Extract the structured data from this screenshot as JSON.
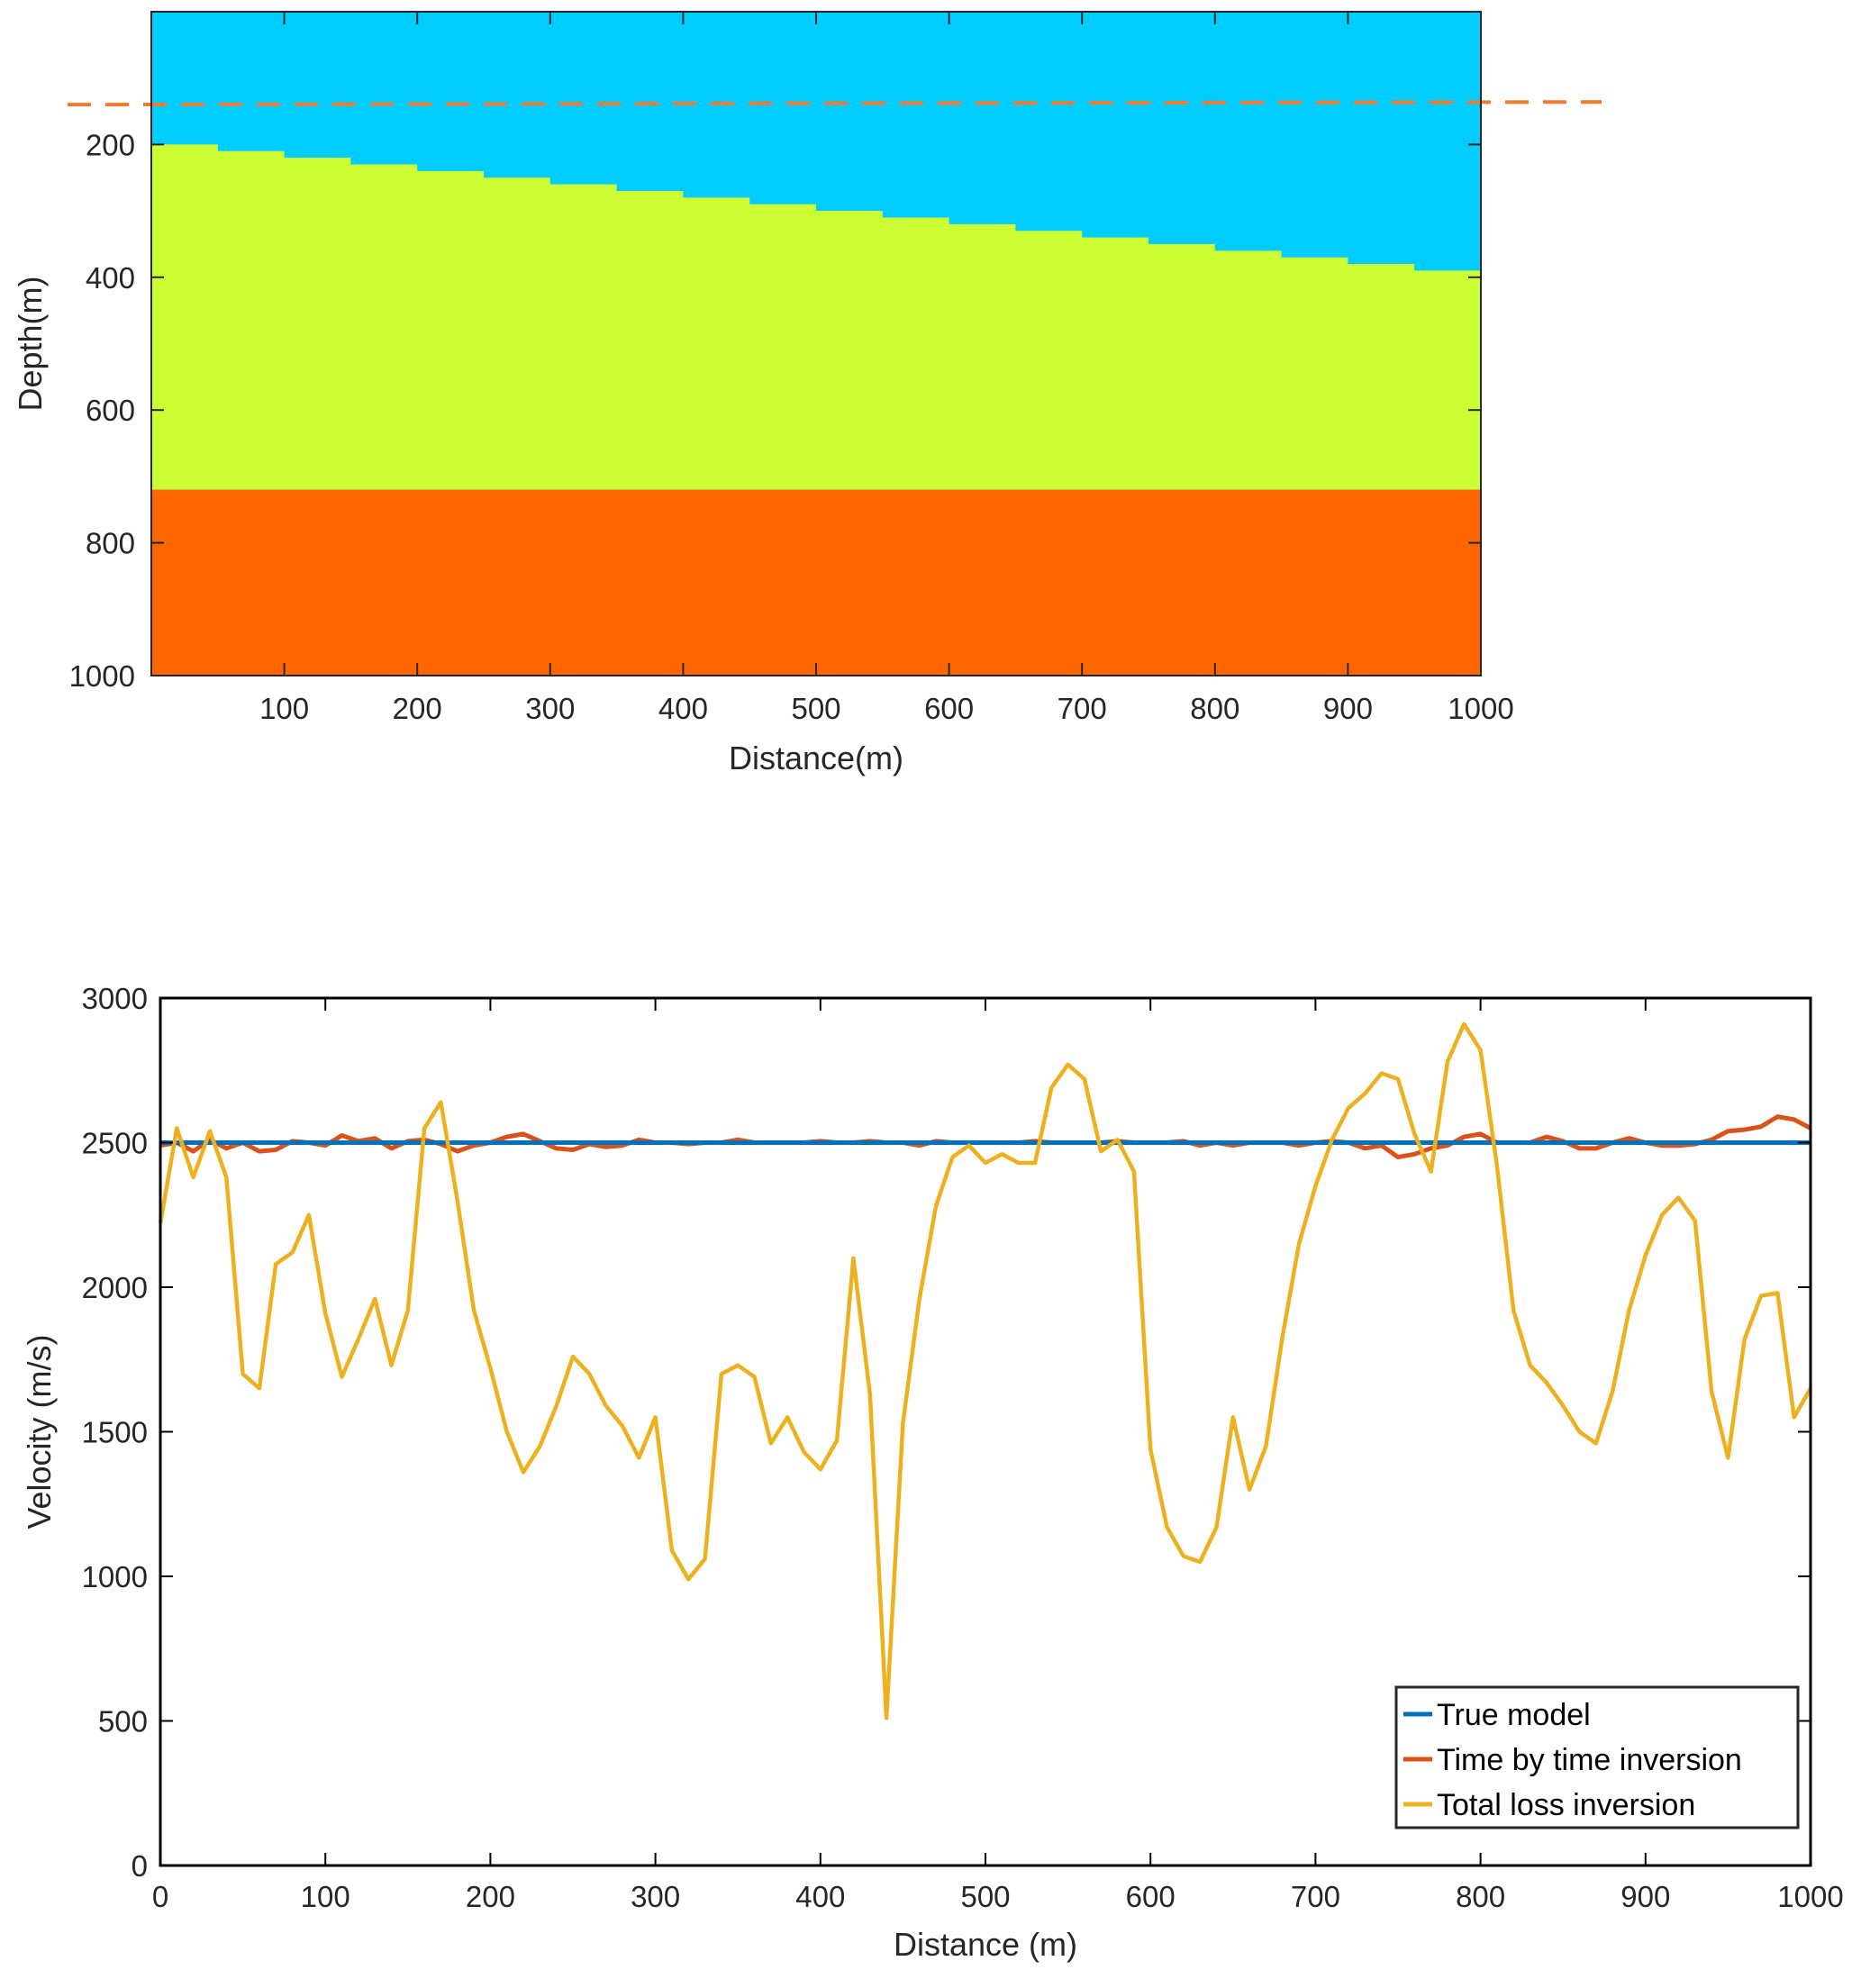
{
  "chart_data": [
    {
      "type": "heatmap",
      "title": "",
      "xlabel": "Distance(m)",
      "ylabel": "Depth(m)",
      "xlim": [
        0,
        1000
      ],
      "ylim": [
        0,
        1000
      ],
      "y_reversed": true,
      "xticks": [
        100,
        200,
        300,
        400,
        500,
        600,
        700,
        800,
        900,
        1000
      ],
      "yticks": [
        200,
        400,
        600,
        800,
        1000
      ],
      "layers": [
        {
          "name": "top layer",
          "color": "#00ccff"
        },
        {
          "name": "middle layer",
          "color": "#ccff33"
        },
        {
          "name": "bottom layer",
          "color": "#ff6600"
        }
      ],
      "interface_upper": {
        "x": [
          0,
          50,
          100,
          150,
          200,
          250,
          300,
          350,
          400,
          450,
          500,
          550,
          600,
          650,
          700,
          750,
          800,
          850,
          900,
          950,
          1000
        ],
        "depth": [
          200,
          210,
          220,
          230,
          240,
          250,
          260,
          270,
          280,
          290,
          300,
          310,
          320,
          330,
          340,
          350,
          360,
          370,
          380,
          390,
          400
        ]
      },
      "interface_lower_depth": 720,
      "profile_line_depth": 140,
      "profile_line_color": "#f07b30"
    },
    {
      "type": "line",
      "title": "",
      "xlabel": "Distance (m)",
      "ylabel": "Velocity (m/s)",
      "xlim": [
        0,
        1000
      ],
      "ylim": [
        0,
        3000
      ],
      "xticks": [
        0,
        100,
        200,
        300,
        400,
        500,
        600,
        700,
        800,
        900,
        1000
      ],
      "yticks": [
        0,
        500,
        1000,
        1500,
        2000,
        2500,
        3000
      ],
      "legend_position": "bottom-right",
      "series": [
        {
          "name": "True model",
          "color": "#0072bd",
          "x": [
            0,
            1000
          ],
          "values": [
            2500,
            2500
          ]
        },
        {
          "name": "Time by time inversion",
          "color": "#d95319",
          "x": [
            0,
            10,
            20,
            30,
            40,
            50,
            60,
            70,
            80,
            90,
            100,
            110,
            120,
            130,
            140,
            150,
            160,
            170,
            180,
            190,
            200,
            210,
            220,
            230,
            240,
            250,
            260,
            270,
            280,
            290,
            300,
            310,
            320,
            330,
            340,
            350,
            360,
            370,
            380,
            390,
            400,
            410,
            420,
            430,
            440,
            450,
            460,
            470,
            480,
            490,
            500,
            510,
            520,
            530,
            540,
            550,
            560,
            570,
            580,
            590,
            600,
            610,
            620,
            630,
            640,
            650,
            660,
            670,
            680,
            690,
            700,
            710,
            720,
            730,
            740,
            750,
            760,
            770,
            780,
            790,
            800,
            810,
            820,
            830,
            840,
            850,
            860,
            870,
            880,
            890,
            900,
            910,
            920,
            930,
            940,
            950,
            960,
            970,
            980,
            990,
            1000
          ],
          "values": [
            2490,
            2500,
            2470,
            2510,
            2480,
            2500,
            2470,
            2475,
            2505,
            2500,
            2490,
            2525,
            2505,
            2515,
            2480,
            2505,
            2510,
            2495,
            2470,
            2490,
            2500,
            2520,
            2530,
            2505,
            2480,
            2475,
            2495,
            2485,
            2490,
            2510,
            2500,
            2500,
            2495,
            2500,
            2500,
            2510,
            2500,
            2500,
            2500,
            2500,
            2505,
            2500,
            2500,
            2505,
            2500,
            2500,
            2490,
            2505,
            2500,
            2500,
            2500,
            2500,
            2500,
            2505,
            2500,
            2500,
            2500,
            2500,
            2505,
            2500,
            2500,
            2500,
            2505,
            2490,
            2500,
            2490,
            2500,
            2500,
            2500,
            2490,
            2500,
            2505,
            2500,
            2480,
            2490,
            2450,
            2460,
            2480,
            2490,
            2520,
            2530,
            2500,
            2500,
            2500,
            2520,
            2505,
            2480,
            2480,
            2500,
            2515,
            2500,
            2490,
            2490,
            2495,
            2510,
            2540,
            2545,
            2555,
            2590,
            2580,
            2550
          ]
        },
        {
          "name": "Total loss inversion",
          "color": "#edb120",
          "x": [
            0,
            10,
            20,
            30,
            40,
            50,
            60,
            70,
            80,
            90,
            100,
            110,
            120,
            130,
            140,
            150,
            160,
            170,
            180,
            190,
            200,
            210,
            220,
            230,
            240,
            250,
            260,
            270,
            280,
            290,
            300,
            310,
            320,
            330,
            340,
            350,
            360,
            370,
            380,
            390,
            400,
            410,
            420,
            430,
            440,
            450,
            460,
            470,
            480,
            490,
            500,
            510,
            520,
            530,
            540,
            550,
            560,
            570,
            580,
            590,
            600,
            610,
            620,
            630,
            640,
            650,
            660,
            670,
            680,
            690,
            700,
            710,
            720,
            730,
            740,
            750,
            760,
            770,
            780,
            790,
            800,
            810,
            820,
            830,
            840,
            850,
            860,
            870,
            880,
            890,
            900,
            910,
            920,
            930,
            940,
            950,
            960,
            970,
            980,
            990,
            1000
          ],
          "values": [
            2220,
            2550,
            2380,
            2540,
            2380,
            1700,
            1650,
            2080,
            2120,
            2250,
            1910,
            1690,
            1820,
            1960,
            1730,
            1920,
            2550,
            2640,
            2300,
            1920,
            1720,
            1500,
            1360,
            1450,
            1590,
            1760,
            1700,
            1590,
            1520,
            1410,
            1550,
            1090,
            990,
            1060,
            1700,
            1730,
            1690,
            1460,
            1550,
            1430,
            1370,
            1470,
            2100,
            1630,
            510,
            1530,
            1960,
            2280,
            2450,
            2490,
            2430,
            2460,
            2430,
            2430,
            2690,
            2770,
            2720,
            2470,
            2510,
            2400,
            1440,
            1170,
            1070,
            1050,
            1170,
            1550,
            1300,
            1450,
            1830,
            2150,
            2350,
            2510,
            2620,
            2670,
            2740,
            2720,
            2530,
            2400,
            2780,
            2910,
            2820,
            2420,
            1920,
            1730,
            1670,
            1590,
            1500,
            1460,
            1640,
            1920,
            2110,
            2250,
            2310,
            2230,
            1640,
            1410,
            1820,
            1970,
            1980,
            1550,
            1650
          ]
        }
      ]
    }
  ]
}
